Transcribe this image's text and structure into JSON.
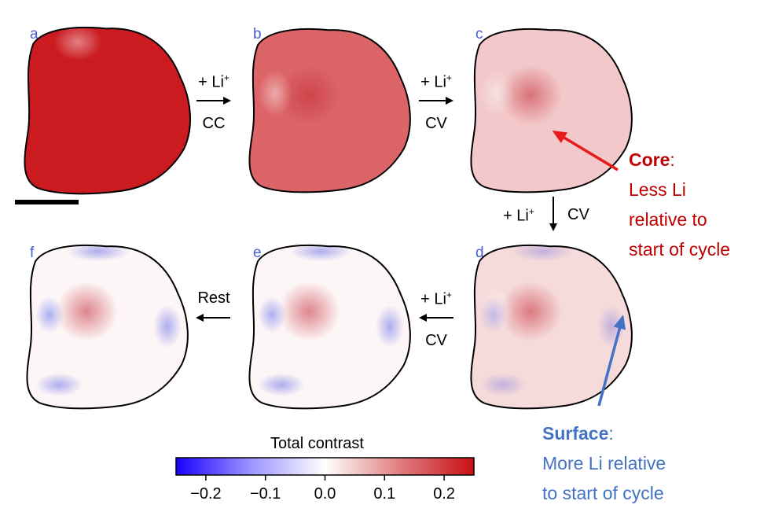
{
  "panels": [
    {
      "letter": "a",
      "mean": 0.25
    },
    {
      "letter": "b",
      "mean": 0.17
    },
    {
      "letter": "c",
      "mean": 0.06
    },
    {
      "letter": "d",
      "mean": 0.04
    },
    {
      "letter": "e",
      "mean": 0.01
    },
    {
      "letter": "f",
      "mean": 0.01
    }
  ],
  "steps": {
    "ab": {
      "top": "+ Li",
      "sup": "+",
      "bottom": "CC"
    },
    "bc": {
      "top": "+ Li",
      "sup": "+",
      "bottom": "CV"
    },
    "cd": {
      "left": "+ Li",
      "sup": "+",
      "right": "CV"
    },
    "de": {
      "top": "+ Li",
      "sup": "+",
      "bottom": "CV"
    },
    "ef": {
      "top": "Rest"
    }
  },
  "callouts": {
    "core": {
      "head": "Core",
      "colon": ":",
      "lines": [
        "Less Li",
        "relative to",
        "start of cycle"
      ],
      "color": "#c00000"
    },
    "surface": {
      "head": "Surface",
      "colon": ":",
      "lines": [
        "More Li relative",
        "to start of cycle"
      ],
      "color": "#4472c4"
    }
  },
  "colorbar": {
    "title": "Total contrast",
    "min": -0.25,
    "max": 0.25,
    "ticks": [
      {
        "value": -0.2,
        "label": "−0.2"
      },
      {
        "value": -0.1,
        "label": "−0.1"
      },
      {
        "value": 0.0,
        "label": "0.0"
      },
      {
        "value": 0.1,
        "label": "0.1"
      },
      {
        "value": 0.2,
        "label": "0.2"
      }
    ],
    "colors": {
      "neg": "#1a00ff",
      "mid": "#ffffff",
      "pos": "#c80f14"
    }
  }
}
